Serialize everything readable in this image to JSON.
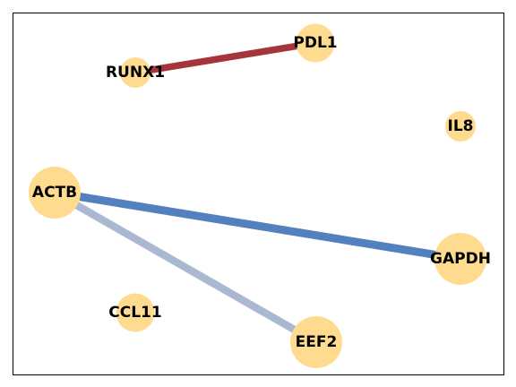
{
  "figure": {
    "type": "network-graph",
    "frame_visible": true,
    "node_color": "#ffdb8f",
    "edge_colors": {
      "strong_positive": "#a5353a",
      "positive": "#5480bd",
      "weak": "#aab9d1"
    }
  },
  "nodes": [
    {
      "id": "RUNX1",
      "label": "RUNX1",
      "relative_size": "small"
    },
    {
      "id": "PDL1",
      "label": "PDL1",
      "relative_size": "medium"
    },
    {
      "id": "IL8",
      "label": "IL8",
      "relative_size": "small"
    },
    {
      "id": "ACTB",
      "label": "ACTB",
      "relative_size": "large"
    },
    {
      "id": "GAPDH",
      "label": "GAPDH",
      "relative_size": "large"
    },
    {
      "id": "CCL11",
      "label": "CCL11",
      "relative_size": "medium"
    },
    {
      "id": "EEF2",
      "label": "EEF2",
      "relative_size": "large"
    }
  ],
  "edges": [
    {
      "source": "RUNX1",
      "target": "PDL1",
      "color": "#a5353a"
    },
    {
      "source": "ACTB",
      "target": "GAPDH",
      "color": "#5480bd"
    },
    {
      "source": "ACTB",
      "target": "EEF2",
      "color": "#aab9d1"
    }
  ]
}
